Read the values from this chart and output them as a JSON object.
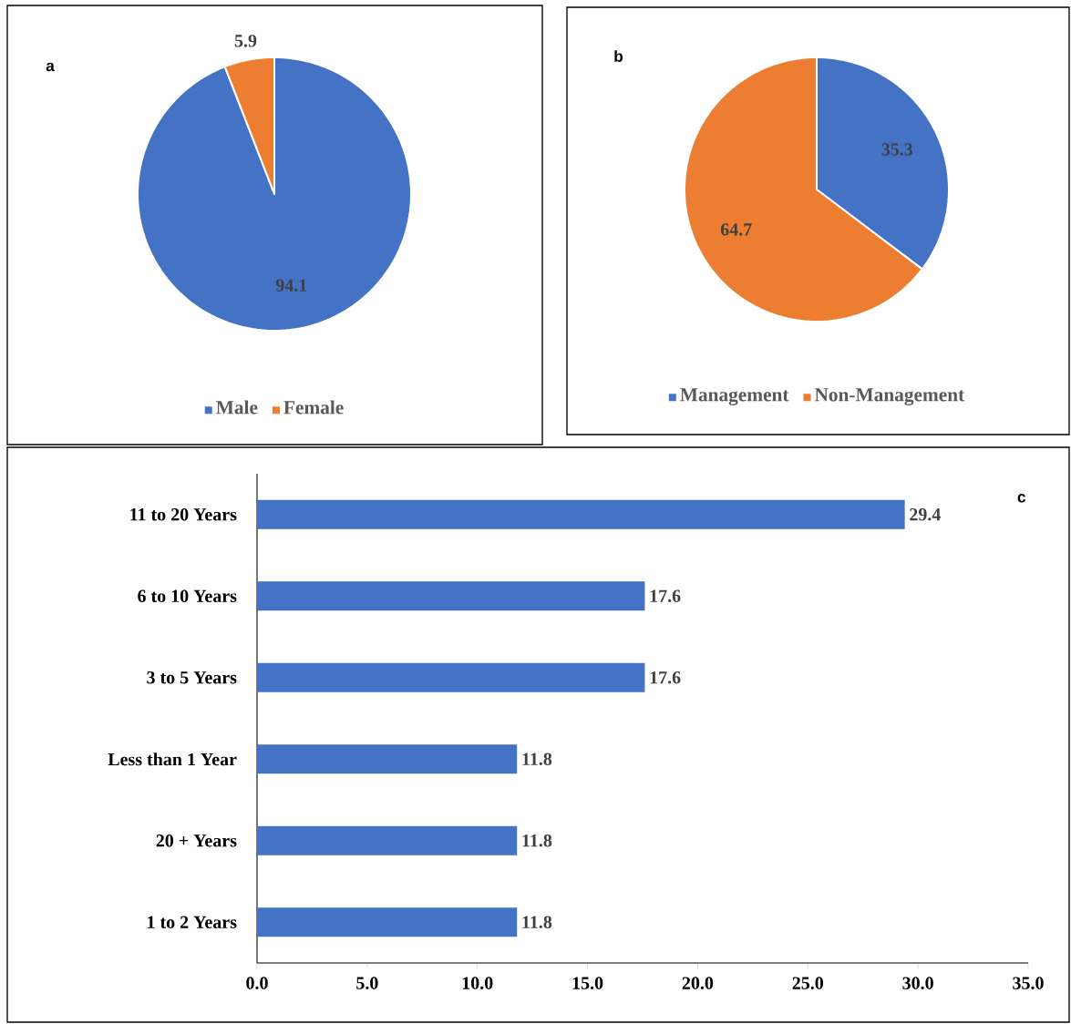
{
  "chart_data": [
    {
      "type": "pie",
      "title": "a",
      "categories": [
        "Male",
        "Female"
      ],
      "values": [
        94.1,
        5.9
      ],
      "colors": [
        "#4472c4",
        "#ed7d31"
      ],
      "data_labels": true,
      "legend": "bottom"
    },
    {
      "type": "pie",
      "title": "b",
      "categories": [
        "Management",
        "Non-Management"
      ],
      "values": [
        35.3,
        64.7
      ],
      "colors": [
        "#4472c4",
        "#ed7d31"
      ],
      "data_labels": true,
      "legend": "bottom"
    },
    {
      "type": "bar",
      "title": "c",
      "orientation": "horizontal",
      "categories": [
        "11 to 20 Years",
        "6 to 10 Years",
        "3 to 5 Years",
        "Less than 1 Year",
        "20 + Years",
        "1 to 2 Years"
      ],
      "values": [
        29.4,
        17.6,
        17.6,
        11.8,
        11.8,
        11.8
      ],
      "color": "#4472c4",
      "data_labels": true,
      "xlim": [
        0,
        35
      ],
      "xticks": [
        {
          "value": 0,
          "label": "0.0"
        },
        {
          "value": 5,
          "label": "5.0"
        },
        {
          "value": 10,
          "label": "10.0"
        },
        {
          "value": 15,
          "label": "15.0"
        },
        {
          "value": 20,
          "label": "20.0"
        },
        {
          "value": 25,
          "label": "25.0"
        },
        {
          "value": 30,
          "label": "30.0"
        },
        {
          "value": 35,
          "label": "35.0"
        }
      ]
    }
  ]
}
